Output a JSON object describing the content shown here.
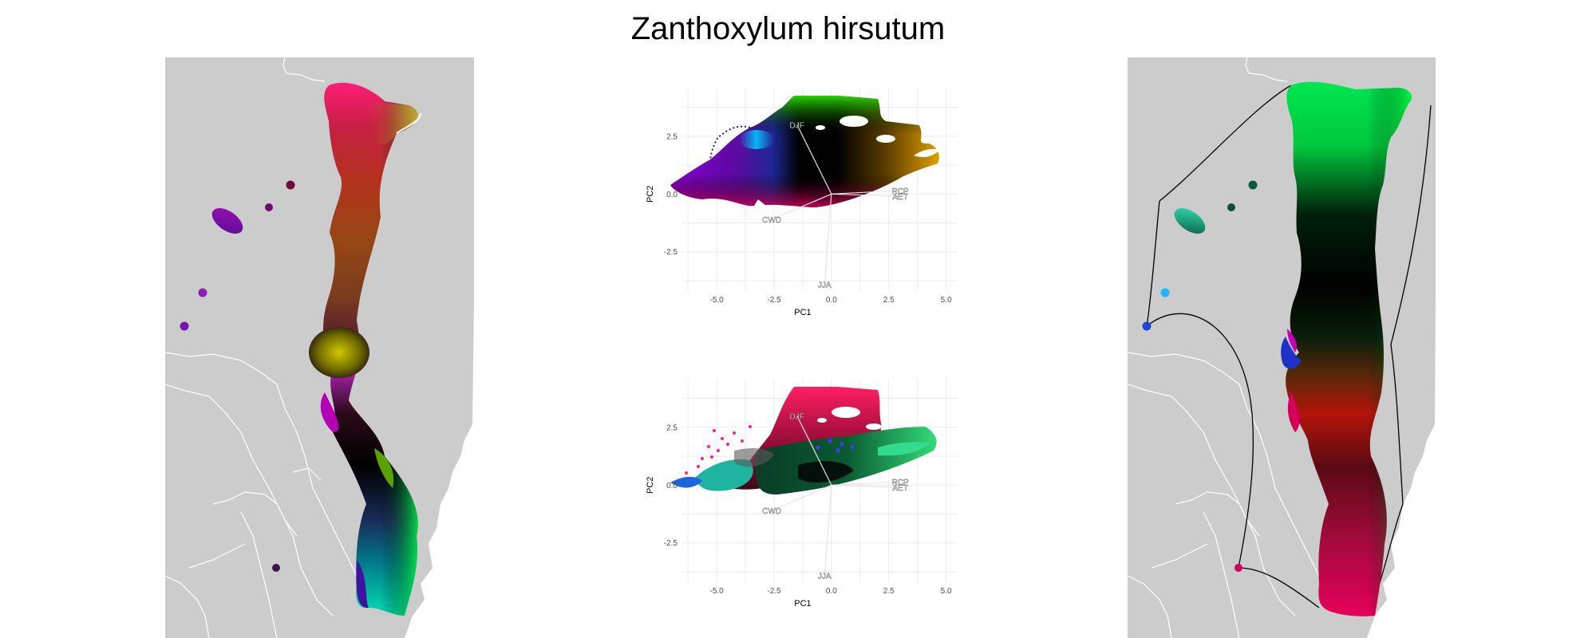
{
  "title": "Zanthoxylum hirsutum",
  "colors": {
    "land": "#cccccc",
    "border": "#ffffff",
    "grid": "#ebebeb",
    "loading_line": "#e5e5e5"
  },
  "chart_data": [
    {
      "type": "map",
      "panel": "left",
      "description_colors": [
        "#ff1e78",
        "#b4321e",
        "#8a5a1e",
        "#c8c800",
        "#b400c8",
        "#000000",
        "#00d6a0",
        "#3c10a0",
        "#00ff00"
      ]
    },
    {
      "type": "scatter",
      "panel": "pca-top",
      "xlabel": "PC1",
      "ylabel": "PC2",
      "xlim": [
        -6.5,
        5.5
      ],
      "ylim": [
        -4.2,
        4.6
      ],
      "x_ticks": [
        "-5.0",
        "-2.5",
        "0.0",
        "2.5",
        "5.0"
      ],
      "y_ticks": [
        "2.5",
        "0.0",
        "-2.5"
      ],
      "x_tick_values": [
        -5,
        -2.5,
        0,
        2.5,
        5
      ],
      "y_tick_values": [
        2.5,
        0,
        -2.5
      ],
      "grid": true,
      "loadings": [
        {
          "label": "DJF",
          "x": -1.5,
          "y": 3.0
        },
        {
          "label": "JJA",
          "x": -0.3,
          "y": -3.9
        },
        {
          "label": "CWD",
          "x": -2.6,
          "y": -1.1
        },
        {
          "label": "RCP",
          "x": 3.0,
          "y": 0.15
        },
        {
          "label": "AET",
          "x": 3.0,
          "y": -0.1
        }
      ]
    },
    {
      "type": "scatter",
      "panel": "pca-bottom",
      "xlabel": "PC1",
      "ylabel": "PC2",
      "xlim": [
        -6.5,
        5.5
      ],
      "ylim": [
        -4.2,
        4.6
      ],
      "x_ticks": [
        "-5.0",
        "-2.5",
        "0.0",
        "2.5",
        "5.0"
      ],
      "y_ticks": [
        "2.5",
        "0.0",
        "-2.5"
      ],
      "x_tick_values": [
        -5,
        -2.5,
        0,
        2.5,
        5
      ],
      "y_tick_values": [
        2.5,
        0,
        -2.5
      ],
      "grid": true,
      "loadings": [
        {
          "label": "DJF",
          "x": -1.5,
          "y": 3.0
        },
        {
          "label": "JJA",
          "x": -0.3,
          "y": -3.9
        },
        {
          "label": "CWD",
          "x": -2.6,
          "y": -1.1
        },
        {
          "label": "RCP",
          "x": 3.0,
          "y": 0.15
        },
        {
          "label": "AET",
          "x": 3.0,
          "y": -0.1
        }
      ]
    },
    {
      "type": "map",
      "panel": "right",
      "description_colors": [
        "#00e060",
        "#000000",
        "#ff1060",
        "#00c8a0",
        "#0a30c8",
        "#00b4ff",
        "#d8005a"
      ]
    }
  ]
}
